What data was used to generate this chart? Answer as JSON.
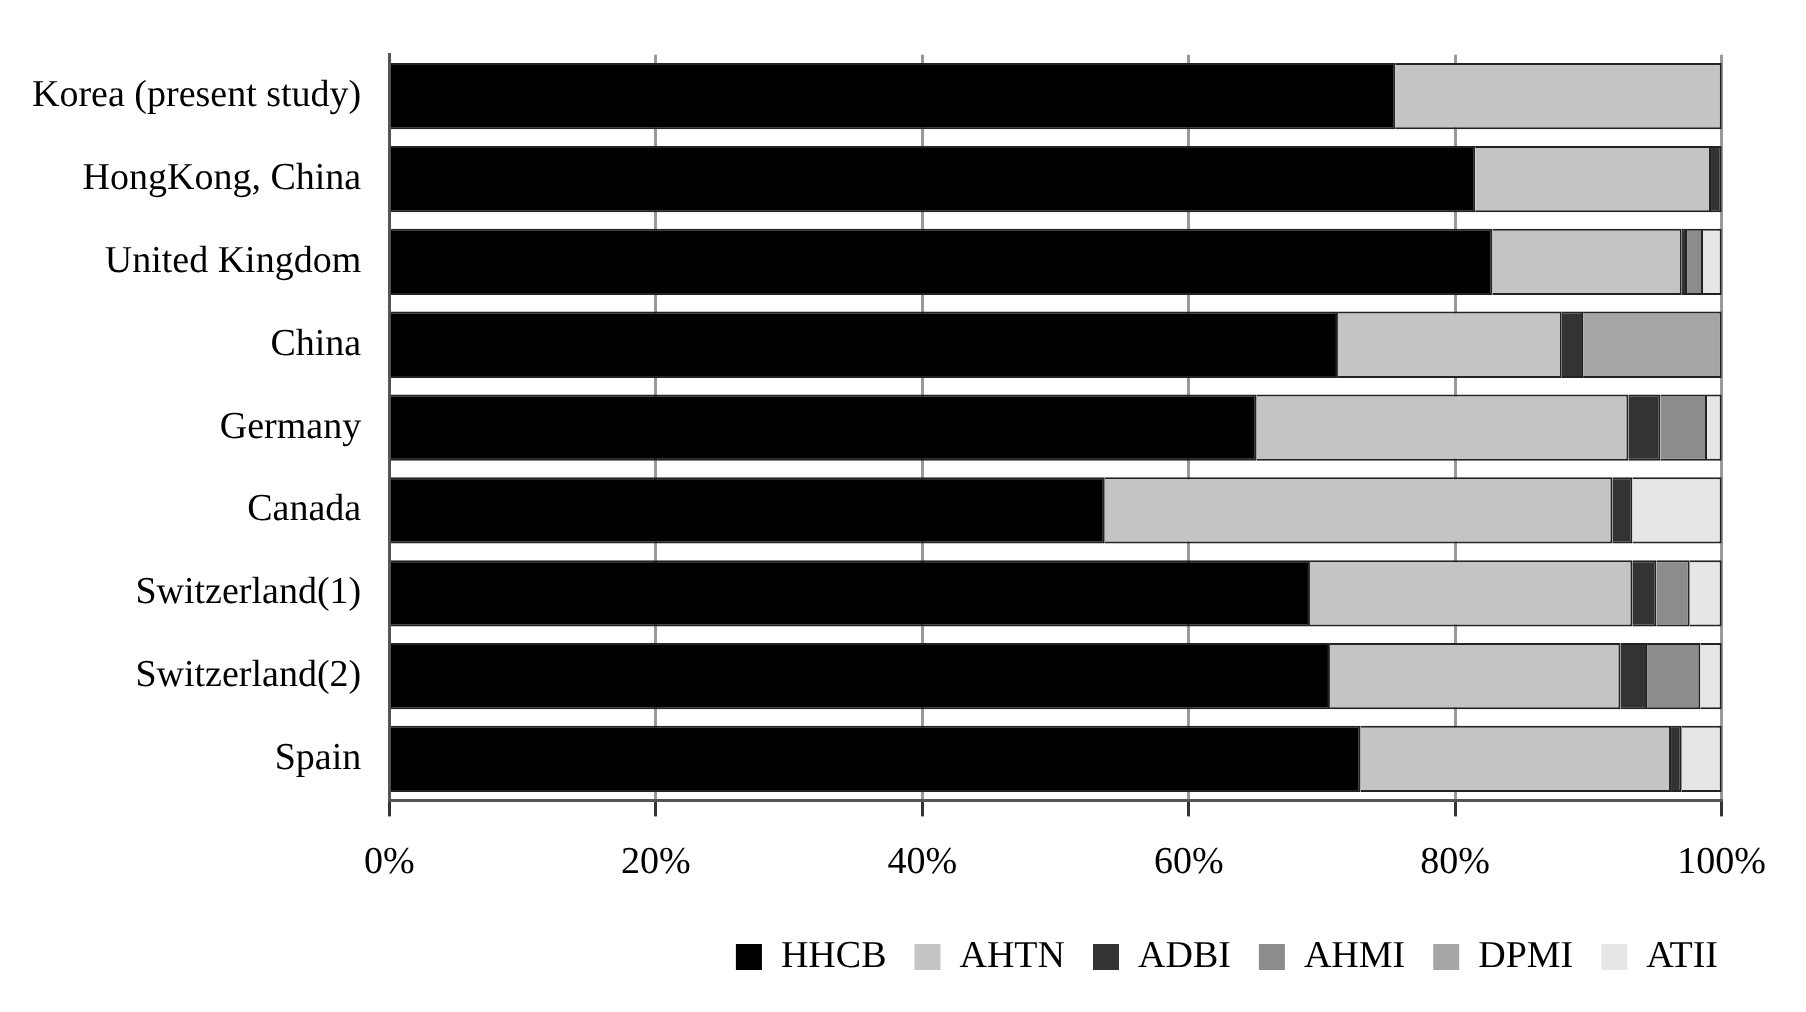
{
  "chart_data": {
    "type": "bar",
    "orientation": "horizontal",
    "stacked": true,
    "categories": [
      "Korea (present study)",
      "HongKong, China",
      "United Kingdom",
      "China",
      "Germany",
      "Canada",
      "Switzerland(1)",
      "Switzerland(2)",
      "Spain"
    ],
    "series": [
      {
        "name": "HHCB",
        "color": "#000000",
        "values": [
          75.5,
          81.5,
          82.8,
          71.2,
          65.1,
          53.7,
          69.1,
          70.6,
          72.9
        ]
      },
      {
        "name": "AHTN",
        "color": "#c4c4c4",
        "values": [
          24.5,
          17.7,
          14.2,
          16.8,
          27.9,
          38.1,
          24.2,
          21.8,
          23.3
        ]
      },
      {
        "name": "ADBI",
        "color": "#333333",
        "values": [
          0,
          0.8,
          0.4,
          1.6,
          2.4,
          1.5,
          1.8,
          2.0,
          0.8
        ]
      },
      {
        "name": "AHMI",
        "color": "#8c8c8c",
        "values": [
          0,
          0,
          1.2,
          0,
          3.5,
          0,
          2.5,
          4.0,
          0
        ]
      },
      {
        "name": "DPMI",
        "color": "#a6a6a6",
        "values": [
          0,
          0,
          0,
          10.4,
          0,
          0,
          0,
          0,
          0
        ]
      },
      {
        "name": "ATII",
        "color": "#e6e6e6",
        "values": [
          0,
          0,
          1.4,
          0,
          1.1,
          6.7,
          2.4,
          1.6,
          3.0
        ]
      }
    ],
    "xlim": [
      0,
      100
    ],
    "xticks": [
      {
        "value": 0,
        "label": "0%"
      },
      {
        "value": 20,
        "label": "20%"
      },
      {
        "value": 40,
        "label": "40%"
      },
      {
        "value": 60,
        "label": "60%"
      },
      {
        "value": 80,
        "label": "80%"
      },
      {
        "value": 100,
        "label": "100%"
      }
    ],
    "grid": "x",
    "legend": "bottom right"
  }
}
